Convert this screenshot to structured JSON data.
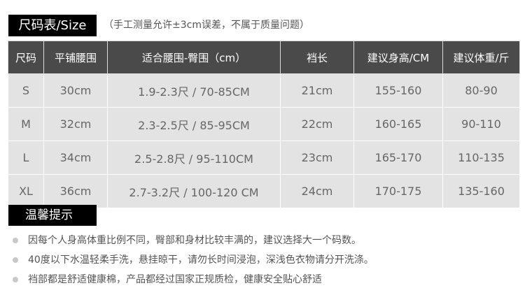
{
  "header": {
    "title": "尺码表/Size",
    "note": "（手工测量允许±3cm误差，不属于质量问题）"
  },
  "table": {
    "columns": [
      "尺码",
      "平铺腰围",
      "适合腰围-臀围（cm）",
      "裆长",
      "建议身高/CM",
      "建议体重/斤"
    ],
    "rows": [
      [
        "S",
        "30cm",
        "1.9-2.3尺 /  70-85CM",
        "21cm",
        "155-160",
        "80-90"
      ],
      [
        "M",
        "32cm",
        "2.3-2.5尺  /  85-95CM",
        "22cm",
        "160-165",
        "90-110"
      ],
      [
        "L",
        "34cm",
        "2.5-2.8尺  /  95-110CM",
        "23cm",
        "165-170",
        "110-135"
      ],
      [
        "XL",
        "36cm",
        "2.7-3.2尺  /  100-120 CM",
        "24cm",
        "170-175",
        "135-160"
      ]
    ]
  },
  "tips": {
    "title": "温馨提示",
    "items": [
      "因每个人身高体重比例不同，臀部和身材比较丰满的，建议选择大一个码数。",
      "40度以下水温轻柔手洗，悬挂晾干，请勿长时间浸泡，深浅色衣物请分开洗涤。",
      "裆部都是舒适健康棉，产品都经过国家正规质检，健康安全贴心舒适"
    ]
  }
}
